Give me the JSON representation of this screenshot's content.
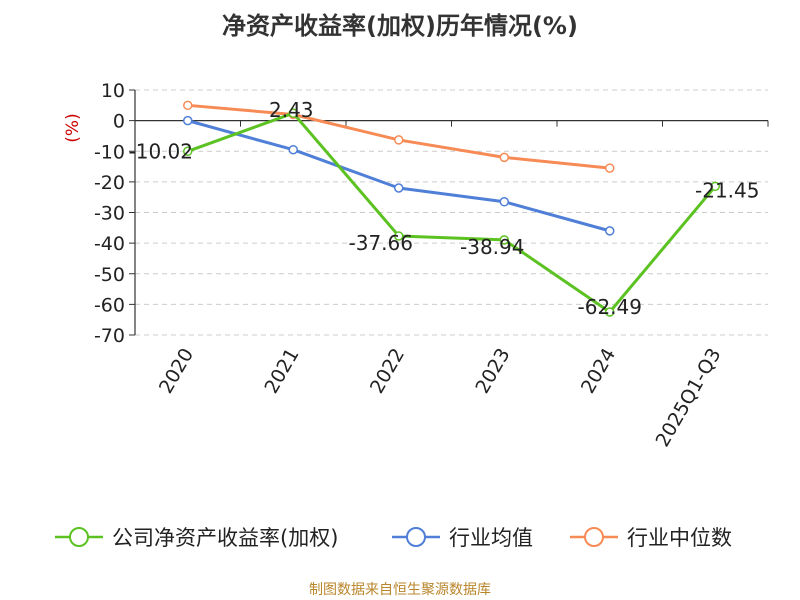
{
  "chart_data": {
    "type": "line",
    "title": "净资产收益率(加权)历年情况(%)",
    "ylabel": "(%)",
    "xlabel": "",
    "ylim": [
      -70,
      10
    ],
    "yticks": [
      10,
      0,
      -10,
      -20,
      -30,
      -40,
      -50,
      -60,
      -70
    ],
    "categories": [
      "2020",
      "2021",
      "2022",
      "2023",
      "2024",
      "2025Q1-Q3"
    ],
    "grid": true,
    "legend_position": "bottom",
    "series": [
      {
        "name": "公司净资产收益率(加权)",
        "color": "#5cc222",
        "values": [
          -10.02,
          2.43,
          -37.66,
          -38.94,
          -62.49,
          -21.45
        ],
        "labels": [
          "-10.02",
          "2.43",
          "-37.66",
          "-38.94",
          "-62.49",
          "-21.45"
        ]
      },
      {
        "name": "行业均值",
        "color": "#4f7fd7",
        "values": [
          0.0,
          -9.5,
          -22.0,
          -26.5,
          -36.0,
          null
        ]
      },
      {
        "name": "行业中位数",
        "color": "#f78b55",
        "values": [
          5.0,
          2.0,
          -6.3,
          -12.0,
          -15.5,
          null
        ]
      }
    ]
  },
  "footer": {
    "source": "制图数据来自恒生聚源数据库"
  }
}
